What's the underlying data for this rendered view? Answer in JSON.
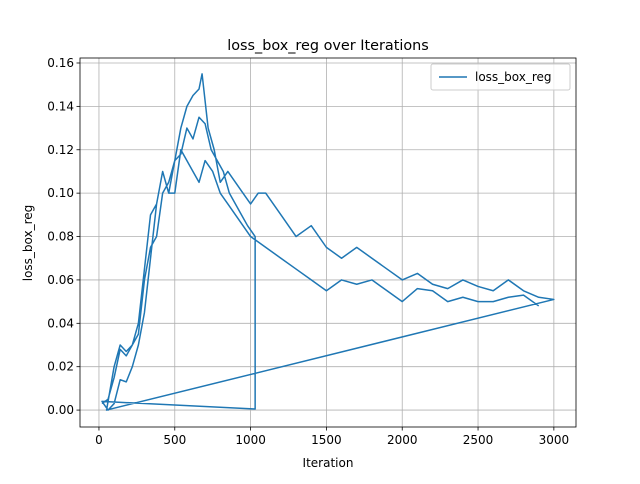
{
  "chart_data": {
    "type": "line",
    "title": "loss_box_reg over Iterations",
    "xlabel": "Iteration",
    "ylabel": "loss_box_reg",
    "x": [
      20,
      60,
      100,
      140,
      180,
      220,
      260,
      300,
      340,
      380,
      420,
      460,
      500,
      540,
      580,
      620,
      660,
      700,
      740,
      780,
      820,
      860,
      900,
      940,
      980,
      1030,
      1030,
      20,
      60,
      100,
      140,
      180,
      220,
      260,
      300,
      340,
      380,
      420,
      460,
      500,
      540,
      580,
      620,
      660,
      680,
      720,
      760,
      800,
      850,
      900,
      950,
      1000,
      1050,
      1100,
      1200,
      1300,
      1400,
      1500,
      1600,
      1700,
      1800,
      1900,
      2000,
      2100,
      2200,
      2300,
      2400,
      2500,
      2600,
      2700,
      2800,
      2900,
      3000,
      50,
      100,
      140,
      180,
      220,
      260,
      300,
      340,
      380,
      420,
      460,
      500,
      540,
      580,
      620,
      660,
      700,
      750,
      800,
      850,
      900,
      950,
      1000,
      1100,
      1200,
      1300,
      1400,
      1500,
      1600,
      1700,
      1800,
      1900,
      2000,
      2100,
      2200,
      2300,
      2400,
      2500,
      2600,
      2700,
      2800,
      2900
    ],
    "series": [
      {
        "name": "loss_box_reg",
        "color": "#1f77b4",
        "values": [
          0.003,
          0.005,
          0.015,
          0.028,
          0.025,
          0.03,
          0.035,
          0.06,
          0.075,
          0.08,
          0.1,
          0.105,
          0.115,
          0.118,
          0.13,
          0.125,
          0.135,
          0.132,
          0.12,
          0.115,
          0.11,
          0.1,
          0.095,
          0.09,
          0.085,
          0.08,
          0.0005,
          0.004,
          0.0,
          0.003,
          0.014,
          0.013,
          0.02,
          0.03,
          0.045,
          0.07,
          0.095,
          0.11,
          0.1,
          0.115,
          0.13,
          0.14,
          0.145,
          0.148,
          0.155,
          0.13,
          0.12,
          0.105,
          0.11,
          0.105,
          0.1,
          0.095,
          0.1,
          0.1,
          0.09,
          0.08,
          0.085,
          0.075,
          0.07,
          0.075,
          0.07,
          0.065,
          0.06,
          0.063,
          0.058,
          0.056,
          0.06,
          0.057,
          0.055,
          0.06,
          0.055,
          0.052,
          0.051,
          0.0,
          0.02,
          0.03,
          0.027,
          0.03,
          0.04,
          0.065,
          0.09,
          0.095,
          0.11,
          0.1,
          0.1,
          0.12,
          0.115,
          0.11,
          0.105,
          0.115,
          0.11,
          0.1,
          0.095,
          0.09,
          0.085,
          0.08,
          0.075,
          0.07,
          0.065,
          0.06,
          0.055,
          0.06,
          0.058,
          0.06,
          0.055,
          0.05,
          0.056,
          0.055,
          0.05,
          0.052,
          0.05,
          0.05,
          0.052,
          0.053,
          0.048
        ]
      }
    ],
    "xlim": [
      -125,
      3146
    ],
    "ylim": [
      -0.0078,
      0.1623
    ],
    "xticks": [
      0,
      500,
      1000,
      1500,
      2000,
      2500,
      3000
    ],
    "yticks": [
      {
        "value": 0,
        "label": "0.00"
      },
      {
        "value": 0.02,
        "label": "0.02"
      },
      {
        "value": 0.04,
        "label": "0.04"
      },
      {
        "value": 0.06,
        "label": "0.06"
      },
      {
        "value": 0.08,
        "label": "0.08"
      },
      {
        "value": 0.1,
        "label": "0.10"
      },
      {
        "value": 0.12,
        "label": "0.12"
      },
      {
        "value": 0.14,
        "label": "0.14"
      },
      {
        "value": 0.16,
        "label": "0.16"
      }
    ],
    "grid": true,
    "legend": "upper right"
  }
}
